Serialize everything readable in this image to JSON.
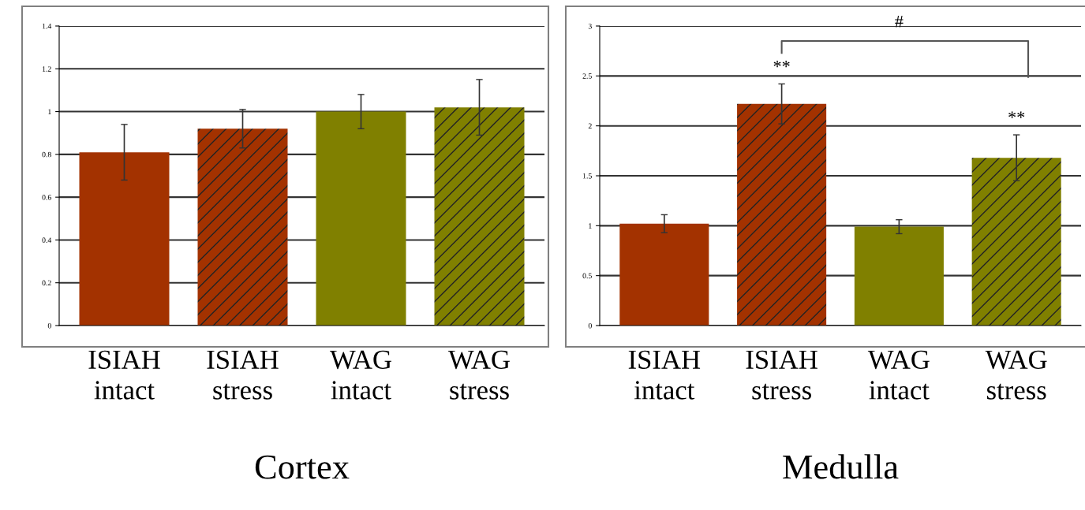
{
  "chart_data": [
    {
      "type": "bar",
      "xlabel": "Cortex",
      "categories": [
        "ISIAH\nintact",
        "ISIAH\nstress",
        "WAG\nintact",
        "WAG\nstress"
      ],
      "values": [
        0.81,
        0.92,
        1.0,
        1.02
      ],
      "errors": [
        0.13,
        0.09,
        0.08,
        0.13
      ],
      "colors": [
        "#a33200",
        "#a33200",
        "#808000",
        "#808000"
      ],
      "ylim": [
        0,
        1.4
      ],
      "yticks": [
        0,
        0.2,
        0.4,
        0.6,
        0.8,
        1,
        1.2,
        1.4
      ],
      "grid": "y"
    },
    {
      "type": "bar",
      "xlabel": "Medulla",
      "categories": [
        "ISIAH\nintact",
        "ISIAH\nstress",
        "WAG\nintact",
        "WAG\nstress"
      ],
      "values": [
        1.02,
        2.22,
        0.99,
        1.68
      ],
      "errors": [
        0.09,
        0.2,
        0.07,
        0.23
      ],
      "colors": [
        "#a33200",
        "#a33200",
        "#808000",
        "#808000"
      ],
      "ylim": [
        0,
        3
      ],
      "yticks": [
        0,
        0.5,
        1,
        1.5,
        2,
        2.5,
        3
      ],
      "grid": "y",
      "annotations": [
        "**",
        "**",
        "#"
      ]
    }
  ]
}
